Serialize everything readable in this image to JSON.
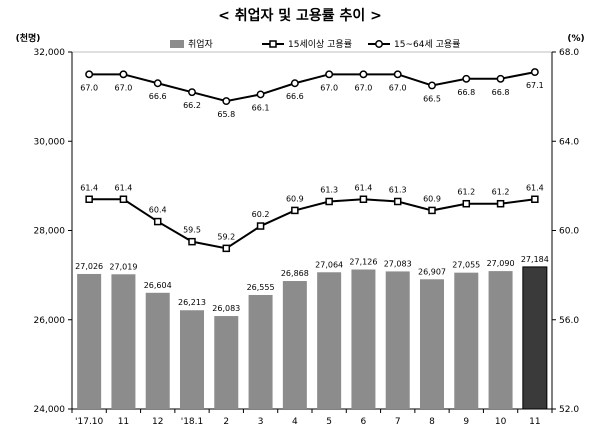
{
  "chart_data": {
    "type": "bar",
    "title": "< 취업자 및 고용률 추이 >",
    "left_unit": "(천명)",
    "right_unit": "(%)",
    "categories": [
      "'17.10",
      "11",
      "12",
      "'18.1",
      "2",
      "3",
      "4",
      "5",
      "6",
      "7",
      "8",
      "9",
      "10",
      "11"
    ],
    "ylim_left": [
      24000,
      32000
    ],
    "yticks_left": [
      "24,000",
      "26,000",
      "28,000",
      "30,000",
      "32,000"
    ],
    "ylim_right": [
      52.0,
      68.0
    ],
    "yticks_right": [
      "52.0",
      "56.0",
      "60.0",
      "64.0",
      "68.0"
    ],
    "legend_position": "top",
    "grid": false,
    "series": [
      {
        "name": "취업자",
        "kind": "bar",
        "axis": "left",
        "values": [
          27026,
          27019,
          26604,
          26213,
          26083,
          26555,
          26868,
          27064,
          27126,
          27083,
          26907,
          27055,
          27090,
          27184
        ],
        "labels": [
          "27,026",
          "27,019",
          "26,604",
          "26,213",
          "26,083",
          "26,555",
          "26,868",
          "27,064",
          "27,126",
          "27,083",
          "26,907",
          "27,055",
          "27,090",
          "27,184"
        ],
        "color": "#8c8c8c",
        "highlight_color": "#3a3a3a"
      },
      {
        "name": "15세이상 고용률",
        "kind": "line",
        "axis": "right",
        "marker": "square",
        "values": [
          61.4,
          61.4,
          60.4,
          59.5,
          59.2,
          60.2,
          60.9,
          61.3,
          61.4,
          61.3,
          60.9,
          61.2,
          61.2,
          61.4
        ],
        "labels": [
          "61.4",
          "61.4",
          "60.4",
          "59.5",
          "59.2",
          "60.2",
          "60.9",
          "61.3",
          "61.4",
          "61.3",
          "60.9",
          "61.2",
          "61.2",
          "61.4"
        ],
        "color": "#000000"
      },
      {
        "name": "15~64세 고용률",
        "kind": "line",
        "axis": "right",
        "marker": "circle",
        "values": [
          67.0,
          67.0,
          66.6,
          66.2,
          65.8,
          66.1,
          66.6,
          67.0,
          67.0,
          67.0,
          66.5,
          66.8,
          66.8,
          67.1
        ],
        "labels": [
          "67.0",
          "67.0",
          "66.6",
          "66.2",
          "65.8",
          "66.1",
          "66.6",
          "67.0",
          "67.0",
          "67.0",
          "66.5",
          "66.8",
          "66.8",
          "67.1"
        ],
        "color": "#000000"
      }
    ]
  }
}
